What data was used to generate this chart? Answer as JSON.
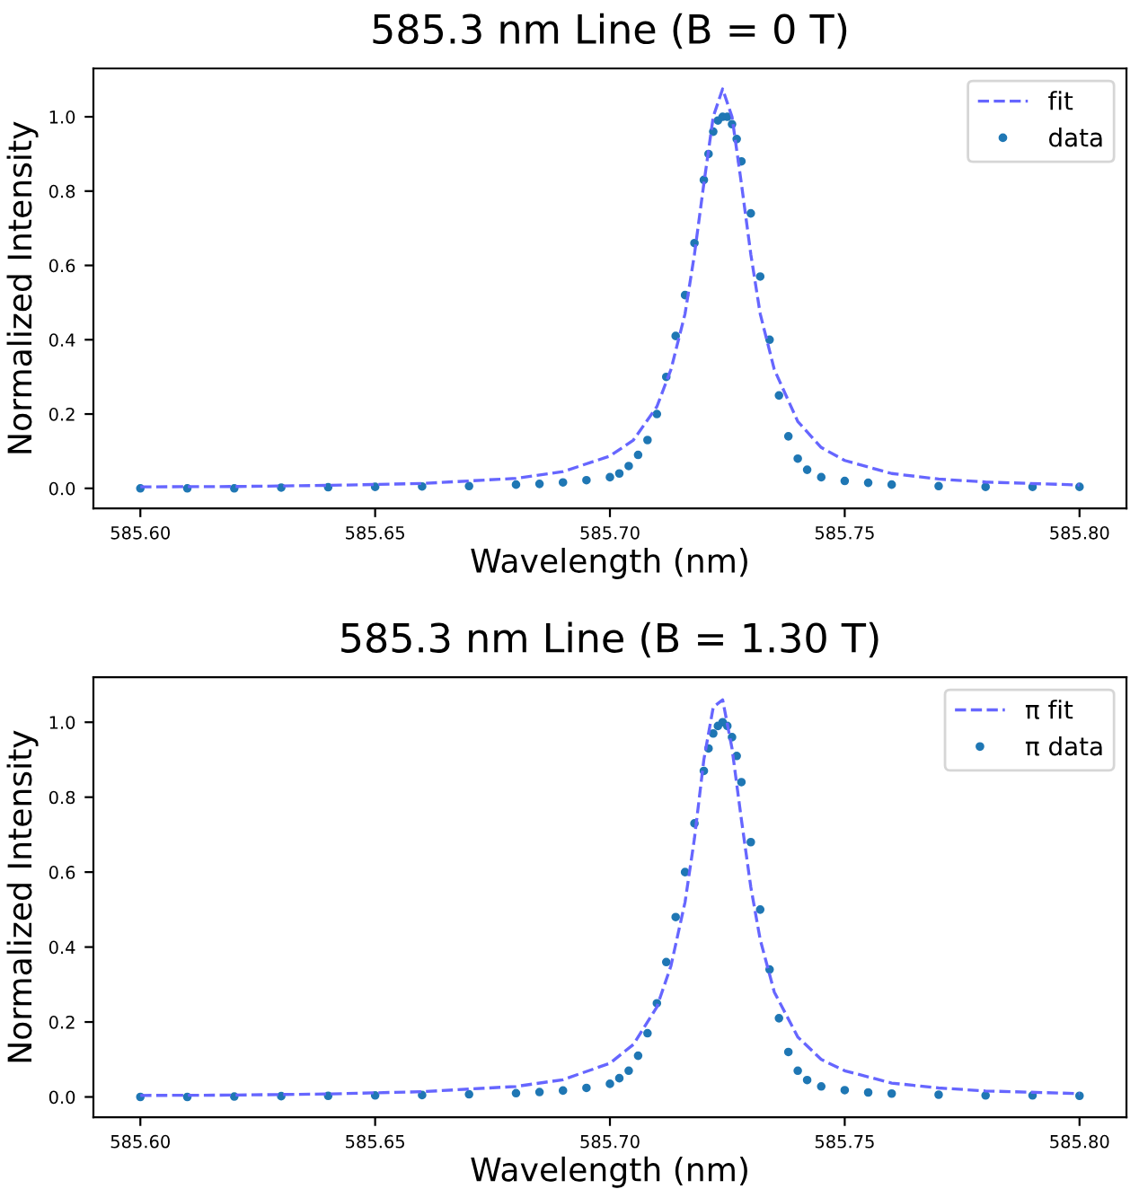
{
  "chart_data": [
    {
      "type": "line",
      "title": "585.3 nm Line (B = 0 T)",
      "xlabel": "Wavelength (nm)",
      "ylabel": "Normalized Intensity",
      "xlim": [
        585.59,
        585.81
      ],
      "xticks": [
        {
          "value": 585.6,
          "label": "585.60"
        },
        {
          "value": 585.65,
          "label": "585.65"
        },
        {
          "value": 585.7,
          "label": "585.70"
        },
        {
          "value": 585.75,
          "label": "585.75"
        },
        {
          "value": 585.8,
          "label": "585.80"
        }
      ],
      "ylim": [
        -0.054,
        1.13
      ],
      "yticks": [
        {
          "value": 0,
          "label": "0.0"
        },
        {
          "value": 0.2,
          "label": "0.2"
        },
        {
          "value": 0.4,
          "label": "0.4"
        },
        {
          "value": 0.6,
          "label": "0.6"
        },
        {
          "value": 0.8,
          "label": "0.8"
        },
        {
          "value": 1.0,
          "label": "1.0"
        }
      ],
      "grid": false,
      "legend": "top right",
      "series": [
        {
          "name": "fit",
          "type": "line",
          "line_style": "dashed",
          "color": "#6666ff",
          "x": [
            585.6,
            585.62,
            585.64,
            585.66,
            585.68,
            585.69,
            585.7,
            585.705,
            585.71,
            585.713,
            585.716,
            585.718,
            585.72,
            585.722,
            585.724,
            585.726,
            585.728,
            585.73,
            585.732,
            585.735,
            585.74,
            585.745,
            585.75,
            585.76,
            585.77,
            585.78,
            585.8
          ],
          "values": [
            0.004,
            0.005,
            0.008,
            0.013,
            0.027,
            0.045,
            0.087,
            0.13,
            0.22,
            0.32,
            0.47,
            0.63,
            0.82,
            1.0,
            1.075,
            1.0,
            0.82,
            0.63,
            0.47,
            0.32,
            0.18,
            0.11,
            0.075,
            0.04,
            0.025,
            0.017,
            0.009
          ]
        },
        {
          "name": "data",
          "type": "scatter",
          "marker": "circle",
          "color": "#1f77b4",
          "x": [
            585.6,
            585.61,
            585.62,
            585.63,
            585.64,
            585.65,
            585.66,
            585.67,
            585.68,
            585.685,
            585.69,
            585.695,
            585.7,
            585.702,
            585.704,
            585.706,
            585.708,
            585.71,
            585.712,
            585.714,
            585.716,
            585.718,
            585.72,
            585.721,
            585.722,
            585.723,
            585.724,
            585.725,
            585.726,
            585.727,
            585.728,
            585.73,
            585.732,
            585.734,
            585.736,
            585.738,
            585.74,
            585.742,
            585.745,
            585.75,
            585.755,
            585.76,
            585.77,
            585.78,
            585.79,
            585.8
          ],
          "values": [
            0.0,
            0.0,
            0.0,
            0.002,
            0.003,
            0.004,
            0.005,
            0.006,
            0.01,
            0.012,
            0.016,
            0.022,
            0.03,
            0.04,
            0.06,
            0.09,
            0.13,
            0.2,
            0.3,
            0.41,
            0.52,
            0.66,
            0.83,
            0.9,
            0.96,
            0.99,
            1.0,
            1.0,
            0.98,
            0.94,
            0.88,
            0.74,
            0.57,
            0.4,
            0.25,
            0.14,
            0.08,
            0.05,
            0.03,
            0.02,
            0.015,
            0.01,
            0.006,
            0.004,
            0.004,
            0.004
          ]
        }
      ]
    },
    {
      "type": "line",
      "title": "585.3 nm Line (B = 1.30 T)",
      "xlabel": "Wavelength (nm)",
      "ylabel": "Normalized Intensity",
      "xlim": [
        585.59,
        585.81
      ],
      "xticks": [
        {
          "value": 585.6,
          "label": "585.60"
        },
        {
          "value": 585.65,
          "label": "585.65"
        },
        {
          "value": 585.7,
          "label": "585.70"
        },
        {
          "value": 585.75,
          "label": "585.75"
        },
        {
          "value": 585.8,
          "label": "585.80"
        }
      ],
      "ylim": [
        -0.054,
        1.12
      ],
      "yticks": [
        {
          "value": 0,
          "label": "0.0"
        },
        {
          "value": 0.2,
          "label": "0.2"
        },
        {
          "value": 0.4,
          "label": "0.4"
        },
        {
          "value": 0.6,
          "label": "0.6"
        },
        {
          "value": 0.8,
          "label": "0.8"
        },
        {
          "value": 1.0,
          "label": "1.0"
        }
      ],
      "grid": false,
      "legend": "top right",
      "series": [
        {
          "name": "π fit",
          "type": "line",
          "line_style": "dashed",
          "color": "#6666ff",
          "x": [
            585.6,
            585.62,
            585.64,
            585.66,
            585.68,
            585.69,
            585.7,
            585.705,
            585.71,
            585.713,
            585.716,
            585.718,
            585.72,
            585.722,
            585.724,
            585.726,
            585.728,
            585.73,
            585.732,
            585.735,
            585.74,
            585.745,
            585.75,
            585.76,
            585.77,
            585.78,
            585.8
          ],
          "values": [
            0.004,
            0.005,
            0.008,
            0.014,
            0.028,
            0.046,
            0.09,
            0.14,
            0.24,
            0.35,
            0.52,
            0.69,
            0.9,
            1.04,
            1.06,
            0.93,
            0.74,
            0.56,
            0.42,
            0.28,
            0.16,
            0.1,
            0.07,
            0.037,
            0.024,
            0.016,
            0.009
          ]
        },
        {
          "name": "π data",
          "type": "scatter",
          "marker": "circle",
          "color": "#1f77b4",
          "x": [
            585.6,
            585.61,
            585.62,
            585.63,
            585.64,
            585.65,
            585.66,
            585.67,
            585.68,
            585.685,
            585.69,
            585.695,
            585.7,
            585.702,
            585.704,
            585.706,
            585.708,
            585.71,
            585.712,
            585.714,
            585.716,
            585.718,
            585.72,
            585.721,
            585.722,
            585.723,
            585.724,
            585.725,
            585.726,
            585.727,
            585.728,
            585.73,
            585.732,
            585.734,
            585.736,
            585.738,
            585.74,
            585.742,
            585.745,
            585.75,
            585.755,
            585.76,
            585.77,
            585.78,
            585.79,
            585.8
          ],
          "values": [
            0.0,
            0.0,
            0.001,
            0.002,
            0.003,
            0.004,
            0.005,
            0.007,
            0.01,
            0.013,
            0.017,
            0.024,
            0.035,
            0.05,
            0.07,
            0.11,
            0.17,
            0.25,
            0.36,
            0.48,
            0.6,
            0.73,
            0.87,
            0.93,
            0.97,
            0.99,
            1.0,
            0.99,
            0.96,
            0.91,
            0.84,
            0.68,
            0.5,
            0.34,
            0.21,
            0.12,
            0.07,
            0.045,
            0.028,
            0.018,
            0.012,
            0.009,
            0.006,
            0.004,
            0.004,
            0.003
          ]
        }
      ]
    }
  ]
}
